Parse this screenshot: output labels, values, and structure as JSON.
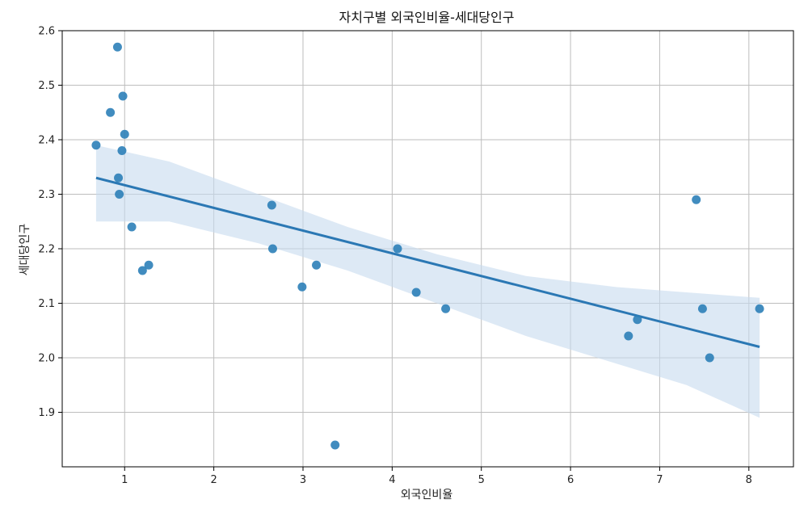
{
  "chart_data": {
    "type": "scatter",
    "title": "자치구별 외국인비율-세대당인구",
    "xlabel": "외국인비율",
    "ylabel": "세대당인구",
    "xlim": [
      0.3,
      8.5
    ],
    "ylim": [
      1.8,
      2.6
    ],
    "xticks": [
      1,
      2,
      3,
      4,
      5,
      6,
      7,
      8
    ],
    "yticks": [
      1.9,
      2.0,
      2.1,
      2.2,
      2.3,
      2.4,
      2.5,
      2.6
    ],
    "grid": true,
    "points": [
      {
        "x": 0.92,
        "y": 2.57
      },
      {
        "x": 0.98,
        "y": 2.48
      },
      {
        "x": 0.84,
        "y": 2.45
      },
      {
        "x": 1.0,
        "y": 2.41
      },
      {
        "x": 0.68,
        "y": 2.39
      },
      {
        "x": 0.97,
        "y": 2.38
      },
      {
        "x": 0.93,
        "y": 2.33
      },
      {
        "x": 0.94,
        "y": 2.3
      },
      {
        "x": 1.08,
        "y": 2.24
      },
      {
        "x": 1.2,
        "y": 2.16
      },
      {
        "x": 1.27,
        "y": 2.17
      },
      {
        "x": 2.65,
        "y": 2.28
      },
      {
        "x": 2.66,
        "y": 2.2
      },
      {
        "x": 2.99,
        "y": 2.13
      },
      {
        "x": 3.15,
        "y": 2.17
      },
      {
        "x": 3.36,
        "y": 1.84
      },
      {
        "x": 4.06,
        "y": 2.2
      },
      {
        "x": 4.27,
        "y": 2.12
      },
      {
        "x": 4.6,
        "y": 2.09
      },
      {
        "x": 6.65,
        "y": 2.04
      },
      {
        "x": 6.75,
        "y": 2.07
      },
      {
        "x": 7.41,
        "y": 2.29
      },
      {
        "x": 7.48,
        "y": 2.09
      },
      {
        "x": 7.56,
        "y": 2.0
      },
      {
        "x": 8.12,
        "y": 2.09
      }
    ],
    "regression": {
      "x": [
        0.68,
        8.12
      ],
      "y": [
        2.33,
        2.02
      ]
    },
    "confidence_band": {
      "x": [
        0.68,
        1.5,
        2.5,
        3.5,
        4.5,
        5.5,
        6.5,
        7.3,
        8.12
      ],
      "upper": [
        2.39,
        2.36,
        2.3,
        2.24,
        2.19,
        2.15,
        2.13,
        2.12,
        2.11
      ],
      "lower": [
        2.25,
        2.25,
        2.21,
        2.16,
        2.1,
        2.04,
        1.99,
        1.95,
        1.89
      ]
    },
    "colors": {
      "points": "#2c7fb8",
      "line": "#2b78b4",
      "band": "#c6dbef",
      "grid": "#bdbdbd",
      "axis": "#000000"
    }
  }
}
